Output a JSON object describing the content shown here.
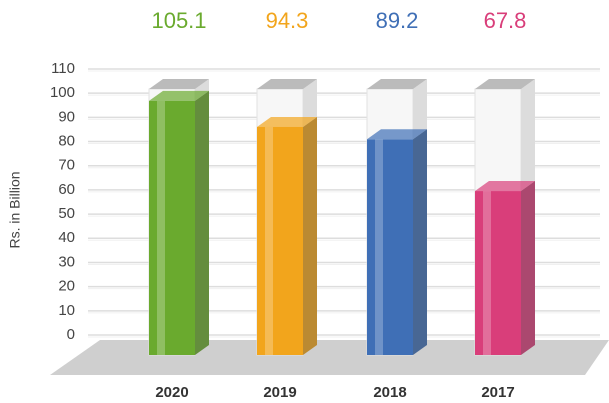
{
  "chart_data": {
    "type": "bar3d",
    "y_label": "Rs. in Billion",
    "categories": [
      "2020",
      "2019",
      "2018",
      "2017"
    ],
    "values": [
      105.1,
      94.3,
      89.2,
      67.8
    ],
    "colors": [
      "#6aaa2e",
      "#f2a51c",
      "#3f6fb6",
      "#d93e7a"
    ],
    "ylim": [
      0,
      110
    ],
    "yticks": [
      0,
      10,
      20,
      30,
      40,
      50,
      60,
      70,
      80,
      90,
      100,
      110
    ],
    "grid": true
  }
}
